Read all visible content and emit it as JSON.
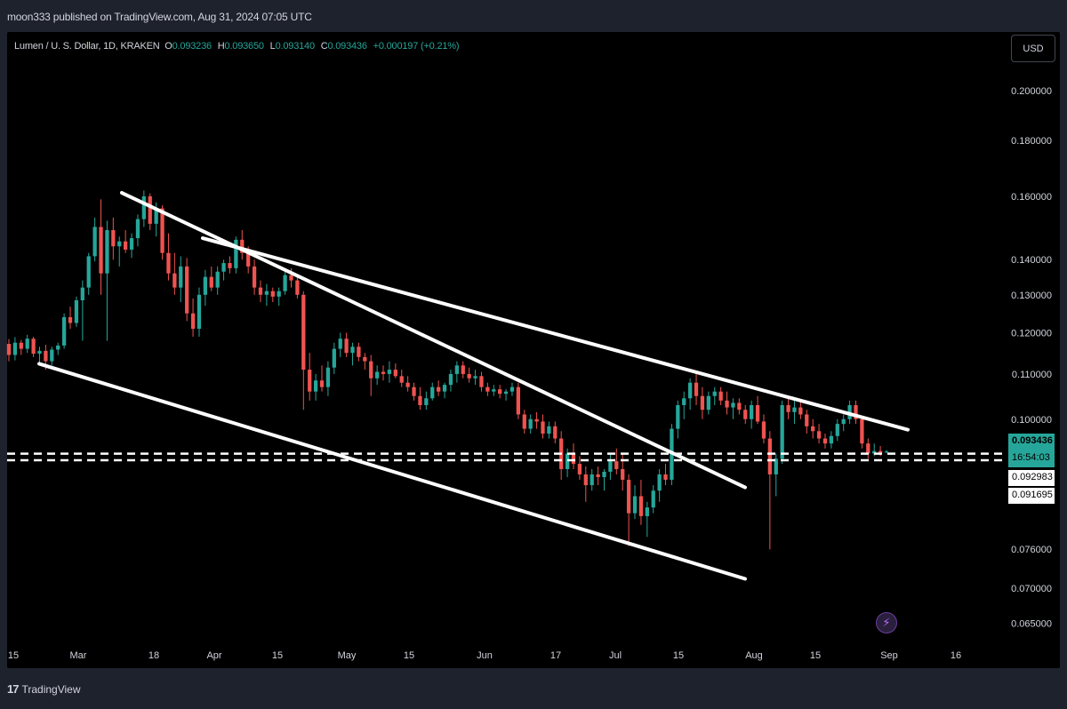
{
  "header": {
    "published": "moon333 published on TradingView.com, Aug 31, 2024 07:05 UTC"
  },
  "legend": {
    "symbol": "Lumen / U. S. Dollar, 1D, KRAKEN",
    "o_label": "O",
    "o_value": "0.093236",
    "h_label": "H",
    "h_value": "0.093650",
    "l_label": "L",
    "l_value": "0.093140",
    "c_label": "C",
    "c_value": "0.093436",
    "change": "+0.000197 (+0.21%)"
  },
  "currency_button": "USD",
  "price_tags": {
    "current": "0.093436",
    "countdown": "16:54:03",
    "level_upper": "0.092983",
    "level_lower": "0.091695"
  },
  "footer": {
    "brand": "TradingView",
    "logo_icon": "tradingview-logo-icon"
  },
  "colors": {
    "up": "#26a69a",
    "down": "#ef5350",
    "background": "#000000",
    "frame": "#1e222d",
    "trendline": "#ffffff",
    "accent_purple": "#b66dff"
  },
  "chart_data": {
    "type": "candlestick",
    "y_scale": "log",
    "y_ticks": [
      "0.200000",
      "0.180000",
      "0.160000",
      "0.140000",
      "0.130000",
      "0.120000",
      "0.110000",
      "0.100000",
      "0.076000",
      "0.070000",
      "0.065000"
    ],
    "x_ticks": [
      "15",
      "Mar",
      "18",
      "Apr",
      "15",
      "May",
      "15",
      "Jun",
      "17",
      "Jul",
      "15",
      "Aug",
      "15",
      "Sep",
      "16"
    ],
    "ohlc": [
      [
        0.1172,
        0.1184,
        0.113,
        0.1145
      ],
      [
        0.1145,
        0.1189,
        0.1132,
        0.1175
      ],
      [
        0.1175,
        0.1182,
        0.1145,
        0.116
      ],
      [
        0.116,
        0.1195,
        0.115,
        0.1185
      ],
      [
        0.1185,
        0.119,
        0.114,
        0.1148
      ],
      [
        0.1148,
        0.1165,
        0.112,
        0.1155
      ],
      [
        0.1155,
        0.117,
        0.111,
        0.113
      ],
      [
        0.113,
        0.1165,
        0.112,
        0.1158
      ],
      [
        0.1158,
        0.1175,
        0.1145,
        0.1168
      ],
      [
        0.1168,
        0.125,
        0.116,
        0.124
      ],
      [
        0.124,
        0.1268,
        0.121,
        0.1225
      ],
      [
        0.1225,
        0.1295,
        0.1215,
        0.1285
      ],
      [
        0.1285,
        0.134,
        0.118,
        0.132
      ],
      [
        0.132,
        0.142,
        0.13,
        0.141
      ],
      [
        0.141,
        0.153,
        0.1395,
        0.15
      ],
      [
        0.15,
        0.159,
        0.13,
        0.136
      ],
      [
        0.136,
        0.152,
        0.118,
        0.149
      ],
      [
        0.149,
        0.153,
        0.14,
        0.144
      ],
      [
        0.144,
        0.147,
        0.138,
        0.1455
      ],
      [
        0.1455,
        0.149,
        0.142,
        0.143
      ],
      [
        0.143,
        0.148,
        0.1405,
        0.1465
      ],
      [
        0.1465,
        0.154,
        0.144,
        0.1525
      ],
      [
        0.1525,
        0.162,
        0.15,
        0.16
      ],
      [
        0.16,
        0.161,
        0.149,
        0.151
      ],
      [
        0.151,
        0.158,
        0.147,
        0.156
      ],
      [
        0.156,
        0.157,
        0.14,
        0.142
      ],
      [
        0.142,
        0.148,
        0.134,
        0.136
      ],
      [
        0.136,
        0.142,
        0.13,
        0.132
      ],
      [
        0.132,
        0.141,
        0.128,
        0.138
      ],
      [
        0.138,
        0.1405,
        0.123,
        0.125
      ],
      [
        0.125,
        0.129,
        0.119,
        0.121
      ],
      [
        0.121,
        0.132,
        0.119,
        0.13
      ],
      [
        0.13,
        0.137,
        0.127,
        0.135
      ],
      [
        0.135,
        0.138,
        0.131,
        0.132
      ],
      [
        0.132,
        0.138,
        0.13,
        0.1365
      ],
      [
        0.1365,
        0.14,
        0.134,
        0.139
      ],
      [
        0.139,
        0.141,
        0.136,
        0.1375
      ],
      [
        0.1375,
        0.147,
        0.136,
        0.146
      ],
      [
        0.146,
        0.149,
        0.14,
        0.142
      ],
      [
        0.142,
        0.144,
        0.136,
        0.138
      ],
      [
        0.138,
        0.14,
        0.13,
        0.132
      ],
      [
        0.132,
        0.134,
        0.128,
        0.13
      ],
      [
        0.13,
        0.133,
        0.127,
        0.131
      ],
      [
        0.131,
        0.132,
        0.128,
        0.1295
      ],
      [
        0.1295,
        0.132,
        0.127,
        0.131
      ],
      [
        0.131,
        0.1365,
        0.13,
        0.1355
      ],
      [
        0.1355,
        0.1375,
        0.132,
        0.134
      ],
      [
        0.134,
        0.135,
        0.129,
        0.13
      ],
      [
        0.13,
        0.131,
        0.102,
        0.111
      ],
      [
        0.111,
        0.115,
        0.104,
        0.106
      ],
      [
        0.106,
        0.11,
        0.104,
        0.1085
      ],
      [
        0.1085,
        0.112,
        0.106,
        0.107
      ],
      [
        0.107,
        0.113,
        0.105,
        0.1115
      ],
      [
        0.1115,
        0.1175,
        0.11,
        0.116
      ],
      [
        0.116,
        0.12,
        0.114,
        0.1185
      ],
      [
        0.1185,
        0.12,
        0.114,
        0.115
      ],
      [
        0.115,
        0.1175,
        0.112,
        0.1165
      ],
      [
        0.1165,
        0.1175,
        0.113,
        0.114
      ],
      [
        0.114,
        0.115,
        0.111,
        0.113
      ],
      [
        0.113,
        0.1145,
        0.105,
        0.109
      ],
      [
        0.109,
        0.112,
        0.1075,
        0.1105
      ],
      [
        0.1105,
        0.112,
        0.1085,
        0.11
      ],
      [
        0.11,
        0.113,
        0.108,
        0.111
      ],
      [
        0.111,
        0.1125,
        0.109,
        0.1095
      ],
      [
        0.1095,
        0.111,
        0.107,
        0.108
      ],
      [
        0.108,
        0.1095,
        0.106,
        0.107
      ],
      [
        0.107,
        0.108,
        0.104,
        0.105
      ],
      [
        0.105,
        0.107,
        0.102,
        0.103
      ],
      [
        0.103,
        0.106,
        0.102,
        0.1045
      ],
      [
        0.1045,
        0.108,
        0.104,
        0.107
      ],
      [
        0.107,
        0.1085,
        0.105,
        0.106
      ],
      [
        0.106,
        0.108,
        0.1045,
        0.1075
      ],
      [
        0.1075,
        0.111,
        0.106,
        0.11
      ],
      [
        0.11,
        0.113,
        0.108,
        0.112
      ],
      [
        0.112,
        0.113,
        0.109,
        0.11
      ],
      [
        0.11,
        0.1115,
        0.108,
        0.109
      ],
      [
        0.109,
        0.111,
        0.1075,
        0.1095
      ],
      [
        0.1095,
        0.1105,
        0.106,
        0.107
      ],
      [
        0.107,
        0.108,
        0.105,
        0.106
      ],
      [
        0.106,
        0.1075,
        0.105,
        0.1065
      ],
      [
        0.1065,
        0.1075,
        0.1045,
        0.1055
      ],
      [
        0.1055,
        0.1065,
        0.104,
        0.106
      ],
      [
        0.106,
        0.108,
        0.105,
        0.107
      ],
      [
        0.107,
        0.108,
        0.1,
        0.101
      ],
      [
        0.101,
        0.102,
        0.097,
        0.098
      ],
      [
        0.098,
        0.101,
        0.097,
        0.1
      ],
      [
        0.1,
        0.1015,
        0.098,
        0.0995
      ],
      [
        0.0995,
        0.101,
        0.096,
        0.097
      ],
      [
        0.097,
        0.0995,
        0.096,
        0.0985
      ],
      [
        0.0985,
        0.0995,
        0.095,
        0.096
      ],
      [
        0.096,
        0.0975,
        0.088,
        0.09
      ],
      [
        0.09,
        0.094,
        0.0885,
        0.093
      ],
      [
        0.093,
        0.095,
        0.09,
        0.091
      ],
      [
        0.091,
        0.0925,
        0.088,
        0.089
      ],
      [
        0.089,
        0.0905,
        0.084,
        0.087
      ],
      [
        0.087,
        0.09,
        0.086,
        0.089
      ],
      [
        0.089,
        0.0905,
        0.087,
        0.0885
      ],
      [
        0.0885,
        0.09,
        0.086,
        0.0895
      ],
      [
        0.0895,
        0.093,
        0.088,
        0.0915
      ],
      [
        0.0915,
        0.094,
        0.089,
        0.09
      ],
      [
        0.09,
        0.093,
        0.086,
        0.088
      ],
      [
        0.088,
        0.089,
        0.0765,
        0.082
      ],
      [
        0.082,
        0.087,
        0.081,
        0.085
      ],
      [
        0.085,
        0.088,
        0.08,
        0.0815
      ],
      [
        0.0815,
        0.084,
        0.078,
        0.083
      ],
      [
        0.083,
        0.087,
        0.082,
        0.086
      ],
      [
        0.086,
        0.09,
        0.084,
        0.089
      ],
      [
        0.089,
        0.091,
        0.087,
        0.088
      ],
      [
        0.088,
        0.099,
        0.087,
        0.098
      ],
      [
        0.098,
        0.104,
        0.096,
        0.103
      ],
      [
        0.103,
        0.106,
        0.1,
        0.1045
      ],
      [
        0.1045,
        0.109,
        0.102,
        0.108
      ],
      [
        0.108,
        0.11,
        0.103,
        0.105
      ],
      [
        0.105,
        0.107,
        0.1,
        0.102
      ],
      [
        0.102,
        0.106,
        0.101,
        0.105
      ],
      [
        0.105,
        0.107,
        0.103,
        0.106
      ],
      [
        0.106,
        0.107,
        0.103,
        0.104
      ],
      [
        0.104,
        0.106,
        0.101,
        0.1025
      ],
      [
        0.1025,
        0.1045,
        0.1,
        0.1035
      ],
      [
        0.1035,
        0.1045,
        0.101,
        0.102
      ],
      [
        0.102,
        0.103,
        0.099,
        0.1
      ],
      [
        0.1,
        0.104,
        0.098,
        0.103
      ],
      [
        0.103,
        0.105,
        0.099,
        0.0995
      ],
      [
        0.0995,
        0.101,
        0.095,
        0.096
      ],
      [
        0.096,
        0.0975,
        0.076,
        0.089
      ],
      [
        0.089,
        0.093,
        0.085,
        0.092
      ],
      [
        0.092,
        0.104,
        0.091,
        0.103
      ],
      [
        0.103,
        0.105,
        0.1,
        0.1015
      ],
      [
        0.1015,
        0.104,
        0.099,
        0.1025
      ],
      [
        0.1025,
        0.104,
        0.1,
        0.101
      ],
      [
        0.101,
        0.102,
        0.097,
        0.0985
      ],
      [
        0.0985,
        0.1,
        0.096,
        0.0975
      ],
      [
        0.0975,
        0.099,
        0.095,
        0.096
      ],
      [
        0.096,
        0.097,
        0.094,
        0.095
      ],
      [
        0.095,
        0.0975,
        0.094,
        0.0965
      ],
      [
        0.0965,
        0.1,
        0.0955,
        0.099
      ],
      [
        0.099,
        0.101,
        0.0975,
        0.1
      ],
      [
        0.1,
        0.104,
        0.099,
        0.103
      ],
      [
        0.103,
        0.104,
        0.099,
        0.1
      ],
      [
        0.1,
        0.1005,
        0.094,
        0.095
      ],
      [
        0.095,
        0.096,
        0.092,
        0.093
      ],
      [
        0.093,
        0.095,
        0.0925,
        0.0935
      ],
      [
        0.0935,
        0.0945,
        0.0925,
        0.0932
      ],
      [
        0.0932,
        0.0937,
        0.0931,
        0.0934
      ]
    ],
    "horizontal_levels": [
      0.092983,
      0.091695
    ],
    "current_price": 0.093436
  }
}
